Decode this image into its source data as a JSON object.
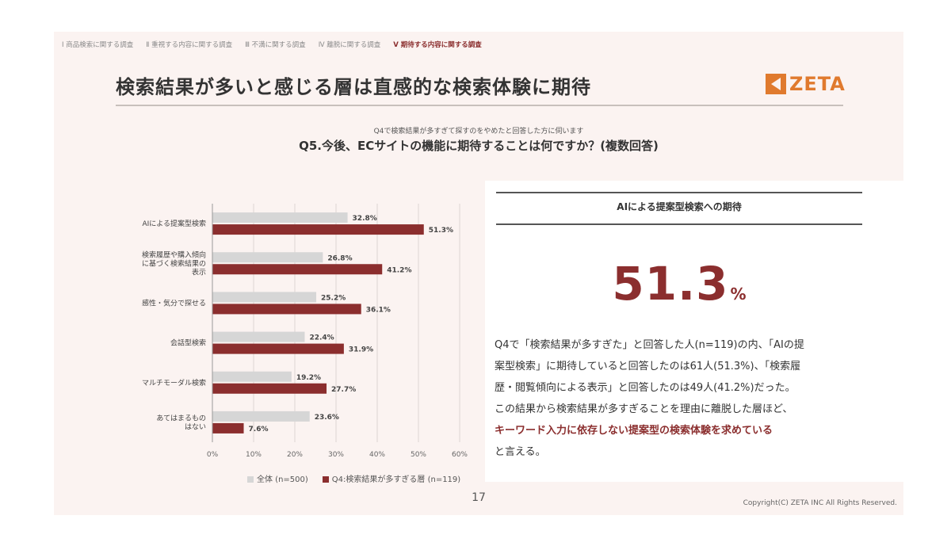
{
  "nav": {
    "items": [
      "Ⅰ 商品検索に関する調査",
      "Ⅱ 重視する内容に関する調査",
      "Ⅲ 不満に関する調査",
      "Ⅳ 離脱に関する調査",
      "Ⅴ 期待する内容に関する調査"
    ],
    "active_index": 4
  },
  "header": {
    "title": "検索結果が多いと感じる層は直感的な検索体験に期待",
    "logo_text": "ZETA"
  },
  "question": {
    "sub": "Q4で検索結果が多すぎて探すのをやめたと回答した方に伺います",
    "main": "Q5.今後、ECサイトの機能に期待することは何ですか？(複数回答)"
  },
  "colors": {
    "all": "#d6d6d6",
    "q4": "#8b2e2e",
    "accent": "#8b2e2e",
    "logo": "#e07a2e"
  },
  "chart_data": {
    "type": "bar",
    "orientation": "horizontal",
    "categories": [
      [
        "AIによる提案型検索"
      ],
      [
        "検索履歴や購入傾向",
        "に基づく検索結果の",
        "表示"
      ],
      [
        "感性・気分で探せる"
      ],
      [
        "会話型検索"
      ],
      [
        "マルチモーダル検索"
      ],
      [
        "あてはまるもの",
        "はない"
      ]
    ],
    "series": [
      {
        "name": "全体 (n=500)",
        "values": [
          32.8,
          26.8,
          25.2,
          22.4,
          19.2,
          23.6
        ],
        "labels": [
          "32.8%",
          "26.8%",
          "25.2%",
          "22.4%",
          "19.2%",
          "23.6%"
        ]
      },
      {
        "name": "Q4:検索結果が多すぎる層 (n=119)",
        "values": [
          51.3,
          41.2,
          36.1,
          31.9,
          27.7,
          7.6
        ],
        "labels": [
          "51.3%",
          "41.2%",
          "36.1%",
          "31.9%",
          "27.7%",
          "7.6%"
        ]
      }
    ],
    "xlim": [
      0,
      60
    ],
    "xticks": [
      "0%",
      "10%",
      "20%",
      "30%",
      "40%",
      "50%",
      "60%"
    ],
    "grid": true,
    "legend": "bottom"
  },
  "panel": {
    "heading": "AIによる提案型検索への期待",
    "big_number": "51.3",
    "big_unit": "%",
    "text_lines": [
      "Q4で「検索結果が多すぎた」と回答した人(n=119)の内、「AIの提",
      "案型検索」に期待していると回答したのは61人(51.3%)、「検索履",
      "歴・閲覧傾向による表示」と回答したのは49人(41.2%)だった。",
      "この結果から検索結果が多すぎることを理由に離脱した層ほど、"
    ],
    "highlight": "キーワード入力に依存しない提案型の検索体験を求めている",
    "closing": "と言える。"
  },
  "footer": {
    "page": "17",
    "copyright": "Copyright(C) ZETA INC All Rights Reserved."
  }
}
